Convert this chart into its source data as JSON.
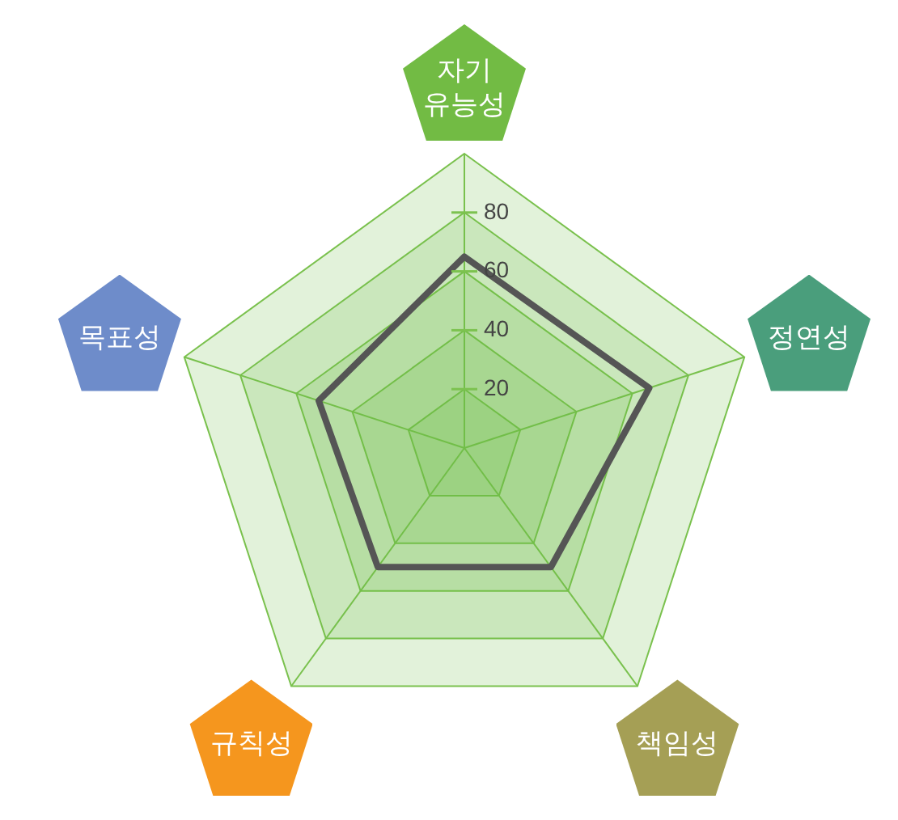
{
  "chart_data": {
    "type": "radar",
    "categories": [
      "자기 유능성",
      "정연성",
      "책임성",
      "규칙성",
      "목표성"
    ],
    "series": [
      {
        "color": "#555555",
        "values": [
          65,
          66,
          50,
          50,
          52
        ]
      }
    ],
    "ylim": [
      0,
      100
    ],
    "yticks": [
      20,
      40,
      60,
      80
    ],
    "grid": true,
    "marker": "none"
  }
}
